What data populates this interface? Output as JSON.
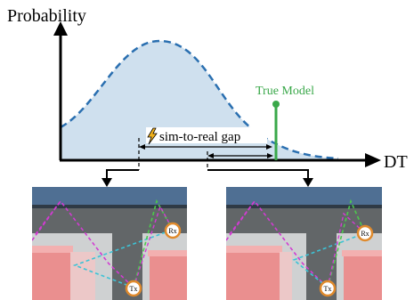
{
  "diagram": {
    "y_axis_label": "Probability",
    "x_axis_label": "DT",
    "gap_label": "sim-to-real gap",
    "true_model_label": "True Model",
    "gap_icon": "lightning-bolt-icon",
    "scenes": [
      {
        "name": "left-scene",
        "markers": [
          {
            "role": "receiver",
            "label": "Rx"
          },
          {
            "role": "transmitter",
            "label": "Tx"
          }
        ]
      },
      {
        "name": "right-scene",
        "markers": [
          {
            "role": "receiver",
            "label": "Rx"
          },
          {
            "role": "transmitter",
            "label": "Tx"
          }
        ]
      }
    ],
    "colors": {
      "distribution_fill": "#cfe0ee",
      "distribution_line": "#2a6fb0",
      "true_model": "#3aa84a",
      "axis": "#000000",
      "ray_magenta": "#d23bd2",
      "ray_cyan": "#3cc3d6",
      "ray_green": "#4dc94d",
      "building": "#ea8f8f",
      "ceiling": "#4f6f93",
      "marker_ring": "#e08a2c"
    }
  }
}
